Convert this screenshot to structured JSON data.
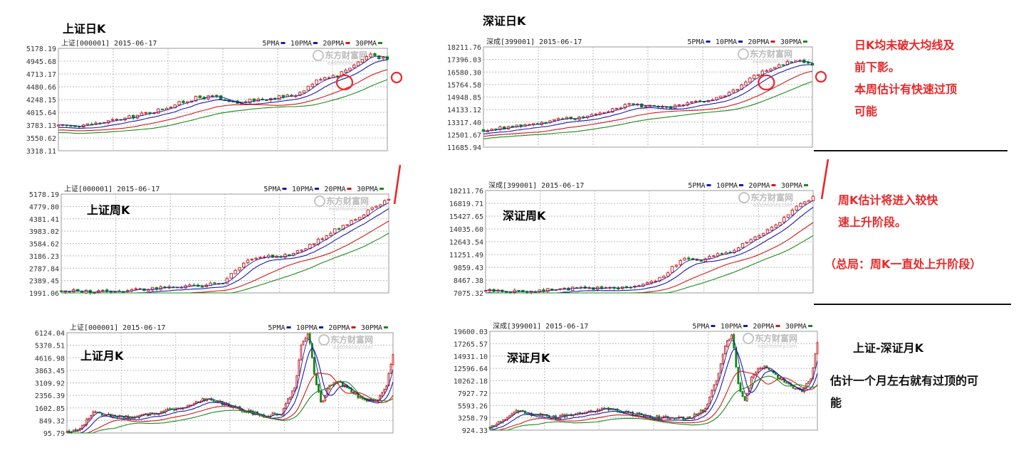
{
  "chart_data": [
    {
      "id": "sh_daily",
      "type": "candlestick",
      "title": "上证日K",
      "header": "上证[000001] 2015-06-17",
      "ma_legend": [
        "5PMA",
        "10PMA",
        "20PMA",
        "30PMA"
      ],
      "ma_colors": [
        "#1a1aa8",
        "#1a1aa8",
        "#d01818",
        "#1a8a1a"
      ],
      "y_ticks": [
        "5178.19",
        "4945.68",
        "4713.17",
        "4480.66",
        "4248.15",
        "4015.64",
        "3783.13",
        "3550.62",
        "3318.11"
      ],
      "ylim": [
        3318.11,
        5178.19
      ],
      "price_path": [
        [
          0,
          3760
        ],
        [
          0.1,
          3800
        ],
        [
          0.2,
          3900
        ],
        [
          0.3,
          4050
        ],
        [
          0.35,
          4150
        ],
        [
          0.42,
          4280
        ],
        [
          0.48,
          4300
        ],
        [
          0.5,
          4210
        ],
        [
          0.55,
          4180
        ],
        [
          0.6,
          4250
        ],
        [
          0.68,
          4300
        ],
        [
          0.72,
          4330
        ],
        [
          0.75,
          4450
        ],
        [
          0.8,
          4650
        ],
        [
          0.85,
          4700
        ],
        [
          0.9,
          4890
        ],
        [
          0.95,
          5080
        ],
        [
          1,
          4960
        ]
      ],
      "circles": [
        {
          "x": 0.87,
          "y": 4560
        }
      ]
    },
    {
      "id": "sz_daily",
      "type": "candlestick",
      "title": "深证日K",
      "header": "深成[399001] 2015-06-17",
      "ma_legend": [
        "5PMA",
        "10PMA",
        "20PMA",
        "30PMA"
      ],
      "ma_colors": [
        "#1a1aa8",
        "#1a1aa8",
        "#d01818",
        "#1a8a1a"
      ],
      "y_ticks": [
        "18211.76",
        "17396.03",
        "16580.30",
        "15764.58",
        "14948.85",
        "14133.12",
        "13317.40",
        "12501.67",
        "11685.94"
      ],
      "ylim": [
        11685.94,
        18211.76
      ],
      "price_path": [
        [
          0,
          12800
        ],
        [
          0.1,
          13050
        ],
        [
          0.2,
          13380
        ],
        [
          0.3,
          13650
        ],
        [
          0.38,
          14100
        ],
        [
          0.45,
          14500
        ],
        [
          0.5,
          14350
        ],
        [
          0.55,
          14200
        ],
        [
          0.6,
          14450
        ],
        [
          0.68,
          14700
        ],
        [
          0.72,
          14900
        ],
        [
          0.78,
          15600
        ],
        [
          0.82,
          16300
        ],
        [
          0.86,
          16750
        ],
        [
          0.9,
          17000
        ],
        [
          0.95,
          17400
        ],
        [
          1,
          17100
        ]
      ],
      "circles": [
        {
          "x": 0.86,
          "y": 15900
        }
      ]
    },
    {
      "id": "sh_weekly",
      "type": "candlestick",
      "title": "上证周K",
      "header": "上证[000001] 2015-06-17",
      "ma_legend": [
        "5PMA",
        "10PMA",
        "20PMA",
        "30PMA"
      ],
      "ma_colors": [
        "#1a1aa8",
        "#1a1aa8",
        "#d01818",
        "#1a8a1a"
      ],
      "y_ticks": [
        "5178.19",
        "4779.80",
        "4381.41",
        "3983.02",
        "3584.62",
        "3186.23",
        "2787.84",
        "2389.45",
        "1991.06"
      ],
      "ylim": [
        1991.06,
        5178.19
      ],
      "price_path": [
        [
          0,
          2050
        ],
        [
          0.1,
          2030
        ],
        [
          0.2,
          2070
        ],
        [
          0.3,
          2150
        ],
        [
          0.4,
          2200
        ],
        [
          0.45,
          2250
        ],
        [
          0.5,
          2350
        ],
        [
          0.53,
          2700
        ],
        [
          0.57,
          3000
        ],
        [
          0.6,
          3200
        ],
        [
          0.65,
          3150
        ],
        [
          0.7,
          3250
        ],
        [
          0.75,
          3450
        ],
        [
          0.8,
          3800
        ],
        [
          0.85,
          4100
        ],
        [
          0.9,
          4400
        ],
        [
          0.95,
          4700
        ],
        [
          1,
          5000
        ]
      ],
      "circles": []
    },
    {
      "id": "sz_weekly",
      "type": "candlestick",
      "title": "深证周K",
      "header": "深成[399001] 2015-06-17",
      "ma_legend": [
        "5PMA",
        "10PMA",
        "20PMA",
        "30PMA"
      ],
      "ma_colors": [
        "#1a1aa8",
        "#1a1aa8",
        "#d01818",
        "#1a8a1a"
      ],
      "y_ticks": [
        "18211.76",
        "16819.71",
        "15427.65",
        "14035.60",
        "12643.54",
        "11251.49",
        "9859.43",
        "8467.38",
        "7075.32"
      ],
      "ylim": [
        7075.32,
        18211.76
      ],
      "price_path": [
        [
          0,
          7300
        ],
        [
          0.1,
          7250
        ],
        [
          0.2,
          7400
        ],
        [
          0.3,
          7600
        ],
        [
          0.4,
          7650
        ],
        [
          0.45,
          7800
        ],
        [
          0.5,
          8100
        ],
        [
          0.55,
          9200
        ],
        [
          0.6,
          10800
        ],
        [
          0.65,
          10500
        ],
        [
          0.7,
          11100
        ],
        [
          0.75,
          11700
        ],
        [
          0.8,
          12600
        ],
        [
          0.85,
          13500
        ],
        [
          0.9,
          14700
        ],
        [
          0.95,
          16500
        ],
        [
          1,
          17400
        ]
      ],
      "circles": []
    },
    {
      "id": "sh_monthly",
      "type": "candlestick",
      "title": "上证月K",
      "header": "上证[000001] 2015-06-17",
      "ma_legend": [
        "5PMA",
        "10PMA",
        "20PMA",
        "30PMA"
      ],
      "ma_colors": [
        "#1a1aa8",
        "#1a1aa8",
        "#d01818",
        "#1a8a1a"
      ],
      "y_ticks": [
        "6124.04",
        "5370.51",
        "4616.98",
        "3863.45",
        "3109.92",
        "2356.39",
        "1602.85",
        "849.32",
        "95.79"
      ],
      "ylim": [
        95.79,
        6124.04
      ],
      "price_path": [
        [
          0,
          120
        ],
        [
          0.04,
          400
        ],
        [
          0.08,
          1300
        ],
        [
          0.14,
          1100
        ],
        [
          0.2,
          1000
        ],
        [
          0.28,
          1300
        ],
        [
          0.36,
          1700
        ],
        [
          0.43,
          2200
        ],
        [
          0.5,
          1700
        ],
        [
          0.57,
          1300
        ],
        [
          0.6,
          1100
        ],
        [
          0.66,
          1300
        ],
        [
          0.7,
          3000
        ],
        [
          0.72,
          5500
        ],
        [
          0.74,
          6100
        ],
        [
          0.76,
          3500
        ],
        [
          0.78,
          1800
        ],
        [
          0.8,
          2800
        ],
        [
          0.83,
          3200
        ],
        [
          0.86,
          2800
        ],
        [
          0.9,
          2200
        ],
        [
          0.95,
          2000
        ],
        [
          0.98,
          3000
        ],
        [
          1,
          4900
        ]
      ],
      "circles": []
    },
    {
      "id": "sz_monthly",
      "type": "candlestick",
      "title": "深证月K",
      "header": "深成[399001] 2015-06-17",
      "ma_legend": [
        "5PMA",
        "10PMA",
        "20PMA",
        "30PMA"
      ],
      "ma_colors": [
        "#1a1aa8",
        "#1a1aa8",
        "#d01818",
        "#1a8a1a"
      ],
      "y_ticks": [
        "19600.03",
        "17265.57",
        "14931.10",
        "12596.64",
        "10262.18",
        "7927.72",
        "5593.26",
        "3258.79",
        "924.33"
      ],
      "ylim": [
        924.33,
        19600.03
      ],
      "price_path": [
        [
          0,
          1500
        ],
        [
          0.04,
          2800
        ],
        [
          0.08,
          4600
        ],
        [
          0.14,
          3900
        ],
        [
          0.2,
          3300
        ],
        [
          0.28,
          4300
        ],
        [
          0.36,
          4900
        ],
        [
          0.43,
          4100
        ],
        [
          0.5,
          3400
        ],
        [
          0.57,
          3100
        ],
        [
          0.61,
          3300
        ],
        [
          0.66,
          4900
        ],
        [
          0.7,
          12000
        ],
        [
          0.72,
          17500
        ],
        [
          0.74,
          19000
        ],
        [
          0.76,
          9000
        ],
        [
          0.78,
          6500
        ],
        [
          0.8,
          11000
        ],
        [
          0.83,
          13000
        ],
        [
          0.86,
          12000
        ],
        [
          0.9,
          10000
        ],
        [
          0.95,
          8300
        ],
        [
          0.98,
          10500
        ],
        [
          1,
          17500
        ]
      ],
      "circles": []
    }
  ],
  "watermark": {
    "cn": "东方财富网",
    "en": "eastmoney.com"
  },
  "annotations": {
    "daily_note": [
      "日K均未破大均线及",
      "前下影。",
      "本周估计有快速过顶",
      "可能"
    ],
    "weekly_note": [
      "周K估计将进入较快",
      "速上升阶段。"
    ],
    "overall_note": "（总局：周K一直处上升阶段）",
    "monthly_title": "上证-深证月K",
    "monthly_note": [
      "估计一个月左右就有过顶的可",
      "能"
    ]
  },
  "colors": {
    "annotation": "#e8282a",
    "up_candle": "#c62828",
    "down_candle": "#138a13",
    "grid": "#bcbcbc"
  }
}
